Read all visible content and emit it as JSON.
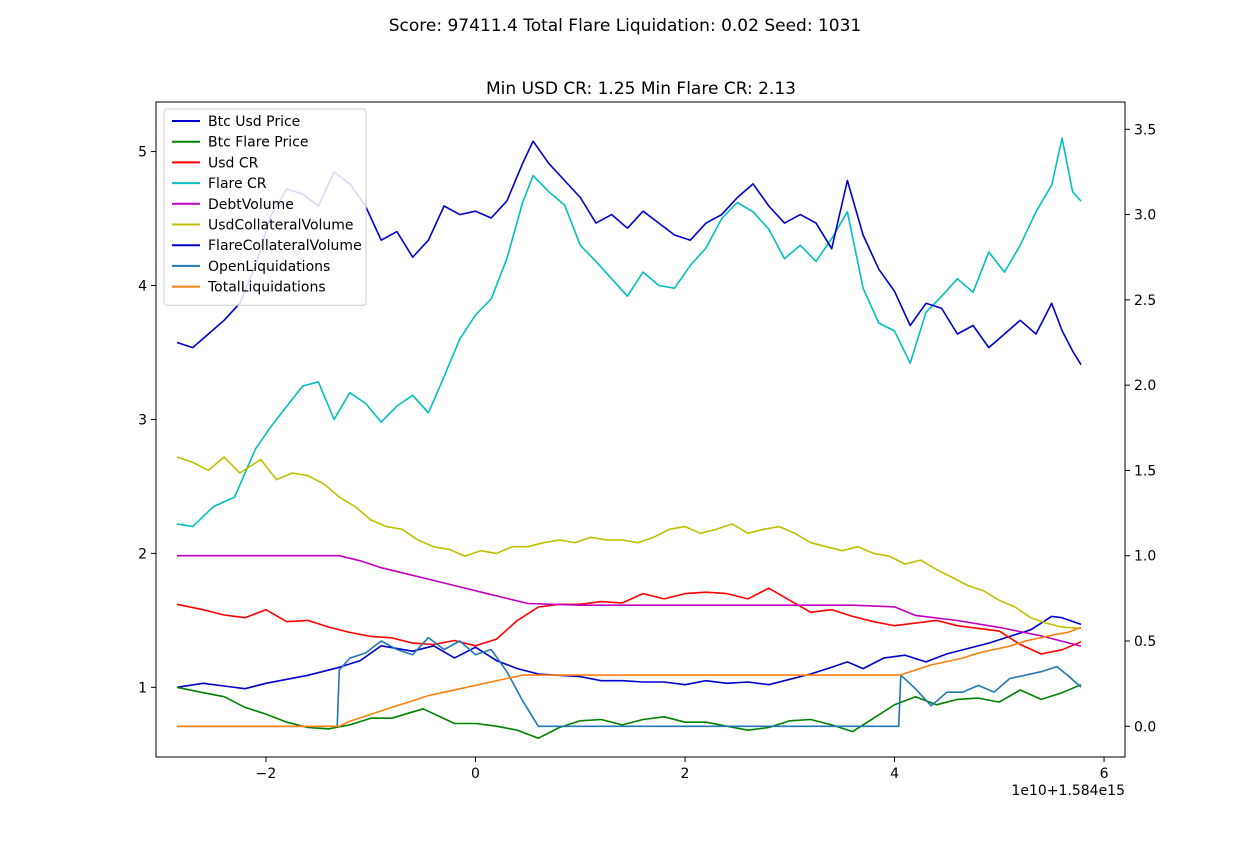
{
  "suptitle": "Score: 97411.4 Total Flare Liquidation: 0.02 Seed: 1031",
  "chart_data": {
    "type": "line",
    "title": "Min USD CR: 1.25 Min Flare CR: 2.13",
    "x_offset_label": "1e10+1.584e15",
    "x_ticks": [
      -2,
      0,
      2,
      4,
      6
    ],
    "x_tick_labels": [
      "−2",
      "0",
      "2",
      "4",
      "6"
    ],
    "xlim": [
      -3.05,
      6.2
    ],
    "y_left_ticks": [
      1,
      2,
      3,
      4,
      5
    ],
    "y_left_tick_labels": [
      "1",
      "2",
      "3",
      "4",
      "5"
    ],
    "ylim_left": [
      0.48,
      5.37
    ],
    "y_right_ticks": [
      0.0,
      0.5,
      1.0,
      1.5,
      2.0,
      2.5,
      3.0,
      3.5
    ],
    "y_right_tick_labels": [
      "0.0",
      "0.5",
      "1.0",
      "1.5",
      "2.0",
      "2.5",
      "3.0",
      "3.5"
    ],
    "ylim_right": [
      -0.18,
      3.66
    ],
    "legend_position": "upper-left",
    "series": [
      {
        "name": "Btc Usd Price",
        "color": "#0000cc",
        "axis": "left",
        "x": [
          -2.85,
          -2.6,
          -2.4,
          -2.2,
          -2.0,
          -1.8,
          -1.6,
          -1.45,
          -1.3,
          -1.1,
          -0.9,
          -0.6,
          -0.4,
          -0.2,
          0.0,
          0.2,
          0.4,
          0.6,
          0.8,
          1.0,
          1.2,
          1.4,
          1.6,
          1.8,
          2.0,
          2.2,
          2.4,
          2.6,
          2.8,
          3.0,
          3.2,
          3.4,
          3.55,
          3.7,
          3.9,
          4.1,
          4.3,
          4.5,
          4.7,
          4.9,
          5.1,
          5.3,
          5.5,
          5.6,
          5.78
        ],
        "y": [
          1.0,
          1.03,
          1.01,
          0.99,
          1.03,
          1.06,
          1.09,
          1.12,
          1.15,
          1.2,
          1.31,
          1.27,
          1.31,
          1.22,
          1.3,
          1.2,
          1.14,
          1.1,
          1.09,
          1.08,
          1.05,
          1.05,
          1.04,
          1.04,
          1.02,
          1.05,
          1.03,
          1.04,
          1.02,
          1.06,
          1.1,
          1.15,
          1.19,
          1.14,
          1.22,
          1.24,
          1.19,
          1.25,
          1.29,
          1.33,
          1.38,
          1.43,
          1.53,
          1.52,
          1.47
        ]
      },
      {
        "name": "Btc Flare Price",
        "color": "#008000",
        "axis": "left",
        "x": [
          -2.85,
          -2.6,
          -2.4,
          -2.2,
          -2.0,
          -1.8,
          -1.6,
          -1.4,
          -1.2,
          -1.0,
          -0.8,
          -0.5,
          -0.2,
          0.0,
          0.2,
          0.4,
          0.6,
          0.8,
          1.0,
          1.2,
          1.4,
          1.6,
          1.8,
          2.0,
          2.2,
          2.4,
          2.6,
          2.8,
          3.0,
          3.2,
          3.4,
          3.6,
          3.8,
          4.0,
          4.2,
          4.4,
          4.6,
          4.8,
          5.0,
          5.2,
          5.4,
          5.6,
          5.78
        ],
        "y": [
          1.0,
          0.96,
          0.93,
          0.85,
          0.8,
          0.74,
          0.7,
          0.69,
          0.72,
          0.77,
          0.77,
          0.84,
          0.73,
          0.73,
          0.71,
          0.68,
          0.62,
          0.7,
          0.75,
          0.76,
          0.72,
          0.76,
          0.78,
          0.74,
          0.74,
          0.71,
          0.68,
          0.7,
          0.75,
          0.76,
          0.72,
          0.67,
          0.77,
          0.87,
          0.93,
          0.87,
          0.91,
          0.92,
          0.89,
          0.98,
          0.91,
          0.96,
          1.02
        ]
      },
      {
        "name": "Usd CR",
        "color": "#ff0000",
        "axis": "left",
        "x": [
          -2.85,
          -2.6,
          -2.4,
          -2.2,
          -2.0,
          -1.8,
          -1.6,
          -1.4,
          -1.2,
          -1.0,
          -0.8,
          -0.6,
          -0.4,
          -0.2,
          0.0,
          0.2,
          0.4,
          0.6,
          0.8,
          1.0,
          1.2,
          1.4,
          1.6,
          1.8,
          2.0,
          2.2,
          2.4,
          2.6,
          2.8,
          3.0,
          3.2,
          3.4,
          3.6,
          3.8,
          4.0,
          4.2,
          4.4,
          4.6,
          4.8,
          5.0,
          5.2,
          5.4,
          5.6,
          5.78
        ],
        "y": [
          1.62,
          1.58,
          1.54,
          1.52,
          1.58,
          1.49,
          1.5,
          1.45,
          1.41,
          1.38,
          1.37,
          1.33,
          1.32,
          1.35,
          1.31,
          1.36,
          1.5,
          1.6,
          1.62,
          1.62,
          1.64,
          1.63,
          1.7,
          1.66,
          1.7,
          1.71,
          1.7,
          1.66,
          1.74,
          1.65,
          1.56,
          1.58,
          1.53,
          1.49,
          1.46,
          1.48,
          1.5,
          1.46,
          1.44,
          1.42,
          1.32,
          1.25,
          1.28,
          1.34
        ]
      },
      {
        "name": "Flare CR",
        "color": "#00bfbf",
        "axis": "left",
        "x": [
          -2.85,
          -2.7,
          -2.5,
          -2.3,
          -2.1,
          -1.95,
          -1.8,
          -1.65,
          -1.5,
          -1.35,
          -1.2,
          -1.05,
          -0.9,
          -0.75,
          -0.6,
          -0.45,
          -0.3,
          -0.15,
          0.0,
          0.15,
          0.3,
          0.45,
          0.55,
          0.7,
          0.85,
          1.0,
          1.15,
          1.3,
          1.45,
          1.6,
          1.75,
          1.9,
          2.05,
          2.2,
          2.35,
          2.5,
          2.65,
          2.8,
          2.95,
          3.1,
          3.25,
          3.4,
          3.55,
          3.7,
          3.85,
          4.0,
          4.15,
          4.3,
          4.45,
          4.6,
          4.75,
          4.9,
          5.05,
          5.2,
          5.35,
          5.5,
          5.6,
          5.7,
          5.78
        ],
        "y": [
          2.22,
          2.2,
          2.35,
          2.42,
          2.78,
          2.95,
          3.1,
          3.25,
          3.28,
          3.0,
          3.2,
          3.12,
          2.98,
          3.1,
          3.18,
          3.05,
          3.32,
          3.6,
          3.78,
          3.9,
          4.2,
          4.62,
          4.82,
          4.7,
          4.6,
          4.3,
          4.18,
          4.05,
          3.92,
          4.1,
          4.0,
          3.98,
          4.15,
          4.28,
          4.5,
          4.62,
          4.55,
          4.42,
          4.2,
          4.3,
          4.18,
          4.35,
          4.55,
          3.98,
          3.72,
          3.66,
          3.42,
          3.8,
          3.92,
          4.05,
          3.95,
          4.25,
          4.1,
          4.3,
          4.55,
          4.75,
          5.1,
          4.7,
          4.63
        ]
      },
      {
        "name": "DebtVolume",
        "color": "#bf00bf",
        "axis": "right",
        "x": [
          -2.85,
          -1.3,
          -1.1,
          -0.9,
          -0.7,
          -0.5,
          -0.3,
          -0.1,
          0.1,
          0.3,
          0.5,
          1.0,
          2.0,
          3.0,
          3.6,
          4.0,
          4.2,
          4.6,
          5.0,
          5.4,
          5.78
        ],
        "y": [
          1.0,
          1.0,
          0.97,
          0.93,
          0.9,
          0.87,
          0.84,
          0.81,
          0.78,
          0.75,
          0.72,
          0.71,
          0.71,
          0.71,
          0.71,
          0.7,
          0.65,
          0.62,
          0.58,
          0.53,
          0.47
        ]
      },
      {
        "name": "UsdCollateralVolume",
        "color": "#bfbf00",
        "axis": "left",
        "x": [
          -2.85,
          -2.7,
          -2.55,
          -2.4,
          -2.25,
          -2.05,
          -1.9,
          -1.75,
          -1.6,
          -1.45,
          -1.3,
          -1.15,
          -1.0,
          -0.85,
          -0.7,
          -0.55,
          -0.4,
          -0.25,
          -0.1,
          0.05,
          0.2,
          0.35,
          0.5,
          0.65,
          0.8,
          0.95,
          1.1,
          1.25,
          1.4,
          1.55,
          1.7,
          1.85,
          2.0,
          2.15,
          2.3,
          2.45,
          2.6,
          2.75,
          2.9,
          3.05,
          3.2,
          3.35,
          3.5,
          3.65,
          3.8,
          3.95,
          4.1,
          4.25,
          4.4,
          4.55,
          4.7,
          4.85,
          5.0,
          5.15,
          5.3,
          5.45,
          5.6,
          5.78
        ],
        "y": [
          2.72,
          2.68,
          2.62,
          2.72,
          2.6,
          2.7,
          2.55,
          2.6,
          2.58,
          2.52,
          2.42,
          2.35,
          2.25,
          2.2,
          2.18,
          2.1,
          2.05,
          2.03,
          1.98,
          2.02,
          2.0,
          2.05,
          2.05,
          2.08,
          2.1,
          2.08,
          2.12,
          2.1,
          2.1,
          2.08,
          2.12,
          2.18,
          2.2,
          2.15,
          2.18,
          2.22,
          2.15,
          2.18,
          2.2,
          2.15,
          2.08,
          2.05,
          2.02,
          2.05,
          2.0,
          1.98,
          1.92,
          1.95,
          1.88,
          1.82,
          1.76,
          1.72,
          1.65,
          1.6,
          1.52,
          1.48,
          1.45,
          1.44
        ]
      },
      {
        "name": "FlareCollateralVolume",
        "color": "#0000cc",
        "axis": "right",
        "x": [
          -2.85,
          -2.7,
          -2.55,
          -2.4,
          -2.25,
          -2.1,
          -1.95,
          -1.8,
          -1.65,
          -1.5,
          -1.35,
          -1.2,
          -1.05,
          -0.9,
          -0.75,
          -0.6,
          -0.45,
          -0.3,
          -0.15,
          0.0,
          0.15,
          0.3,
          0.45,
          0.55,
          0.7,
          0.85,
          1.0,
          1.15,
          1.3,
          1.45,
          1.6,
          1.75,
          1.9,
          2.05,
          2.2,
          2.35,
          2.5,
          2.65,
          2.8,
          2.95,
          3.1,
          3.25,
          3.4,
          3.55,
          3.7,
          3.85,
          4.0,
          4.15,
          4.3,
          4.45,
          4.6,
          4.75,
          4.9,
          5.05,
          5.2,
          5.35,
          5.5,
          5.6,
          5.7,
          5.78
        ],
        "y": [
          2.25,
          2.22,
          2.3,
          2.38,
          2.48,
          2.7,
          3.0,
          3.15,
          3.12,
          3.05,
          3.25,
          3.18,
          3.05,
          2.85,
          2.9,
          2.75,
          2.85,
          3.05,
          3.0,
          3.02,
          2.98,
          3.08,
          3.3,
          3.43,
          3.3,
          3.2,
          3.1,
          2.95,
          3.0,
          2.92,
          3.02,
          2.95,
          2.88,
          2.85,
          2.95,
          3.0,
          3.1,
          3.18,
          3.05,
          2.95,
          3.0,
          2.95,
          2.8,
          3.2,
          2.88,
          2.68,
          2.55,
          2.35,
          2.48,
          2.45,
          2.3,
          2.35,
          2.22,
          2.3,
          2.38,
          2.3,
          2.48,
          2.32,
          2.2,
          2.12
        ]
      },
      {
        "name": "OpenLiquidations",
        "color": "#1f77b4",
        "axis": "right",
        "x": [
          -2.85,
          -1.32,
          -1.3,
          -1.2,
          -1.05,
          -0.9,
          -0.75,
          -0.6,
          -0.45,
          -0.3,
          -0.15,
          0.0,
          0.15,
          0.3,
          0.45,
          0.55,
          0.6,
          1.0,
          2.0,
          3.0,
          4.04,
          4.06,
          4.2,
          4.35,
          4.5,
          4.65,
          4.8,
          4.95,
          5.1,
          5.25,
          5.4,
          5.55,
          5.65,
          5.78
        ],
        "y": [
          0.0,
          0.0,
          0.33,
          0.4,
          0.43,
          0.5,
          0.45,
          0.42,
          0.52,
          0.45,
          0.5,
          0.42,
          0.45,
          0.32,
          0.15,
          0.05,
          0.0,
          0.0,
          0.0,
          0.0,
          0.0,
          0.3,
          0.22,
          0.12,
          0.2,
          0.2,
          0.24,
          0.2,
          0.28,
          0.3,
          0.32,
          0.35,
          0.3,
          0.23
        ]
      },
      {
        "name": "TotalLiquidations",
        "color": "#ff7f0e",
        "axis": "right",
        "x": [
          -2.85,
          -1.3,
          -1.2,
          -1.05,
          -0.9,
          -0.75,
          -0.6,
          -0.45,
          -0.3,
          -0.15,
          0.0,
          0.15,
          0.3,
          0.45,
          0.6,
          1.0,
          2.0,
          3.0,
          4.05,
          4.2,
          4.35,
          4.5,
          4.65,
          4.8,
          4.95,
          5.1,
          5.25,
          5.4,
          5.55,
          5.65,
          5.78
        ],
        "y": [
          0.0,
          0.0,
          0.03,
          0.06,
          0.09,
          0.12,
          0.15,
          0.18,
          0.2,
          0.22,
          0.24,
          0.26,
          0.28,
          0.3,
          0.3,
          0.3,
          0.3,
          0.3,
          0.3,
          0.33,
          0.36,
          0.38,
          0.4,
          0.43,
          0.45,
          0.47,
          0.5,
          0.52,
          0.54,
          0.55,
          0.58
        ]
      }
    ]
  }
}
